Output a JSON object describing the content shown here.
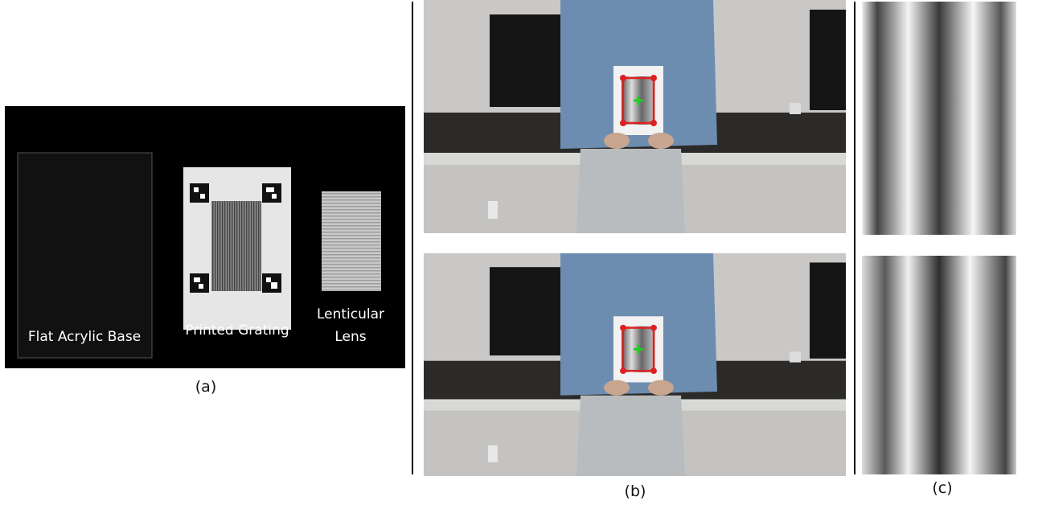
{
  "panel_a": {
    "caption": "(a)",
    "items": [
      {
        "label": "Flat Acrylic Base"
      },
      {
        "label": "Printed Grating"
      },
      {
        "label_lines": [
          "Lenticular",
          "Lens"
        ]
      }
    ]
  },
  "panel_b": {
    "caption": "(b)"
  },
  "panel_c": {
    "caption": "(c)"
  }
}
